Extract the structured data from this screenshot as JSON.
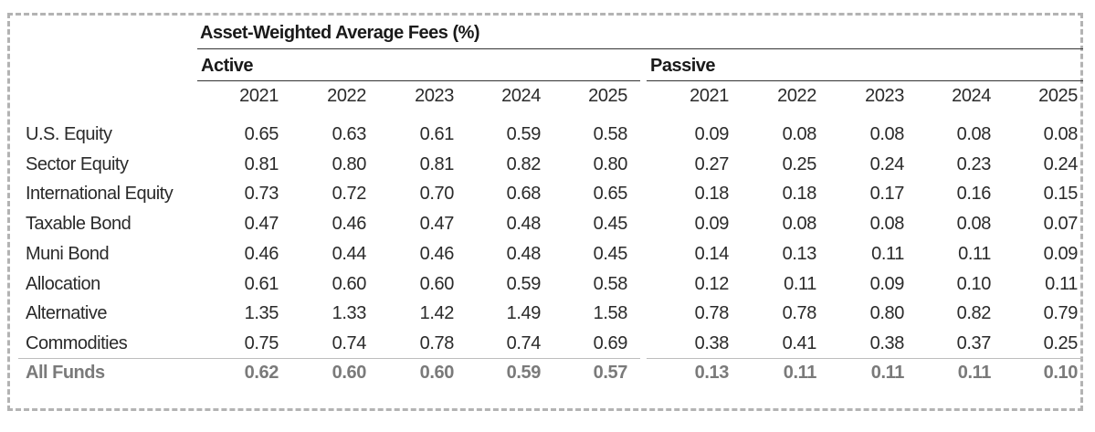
{
  "title": "Asset-Weighted Average Fees (%)",
  "groups": [
    {
      "label": "Active",
      "years": [
        "2021",
        "2022",
        "2023",
        "2024",
        "2025"
      ]
    },
    {
      "label": "Passive",
      "years": [
        "2021",
        "2022",
        "2023",
        "2024",
        "2025"
      ]
    }
  ],
  "chart_data": {
    "type": "table",
    "title": "Asset-Weighted Average Fees (%)",
    "column_groups": [
      "Active",
      "Passive"
    ],
    "columns": [
      "2021",
      "2022",
      "2023",
      "2024",
      "2025"
    ],
    "rows": [
      {
        "label": "U.S. Equity",
        "active": [
          "0.65",
          "0.63",
          "0.61",
          "0.59",
          "0.58"
        ],
        "passive": [
          "0.09",
          "0.08",
          "0.08",
          "0.08",
          "0.08"
        ]
      },
      {
        "label": "Sector Equity",
        "active": [
          "0.81",
          "0.80",
          "0.81",
          "0.82",
          "0.80"
        ],
        "passive": [
          "0.27",
          "0.25",
          "0.24",
          "0.23",
          "0.24"
        ]
      },
      {
        "label": "International Equity",
        "active": [
          "0.73",
          "0.72",
          "0.70",
          "0.68",
          "0.65"
        ],
        "passive": [
          "0.18",
          "0.18",
          "0.17",
          "0.16",
          "0.15"
        ]
      },
      {
        "label": "Taxable Bond",
        "active": [
          "0.47",
          "0.46",
          "0.47",
          "0.48",
          "0.45"
        ],
        "passive": [
          "0.09",
          "0.08",
          "0.08",
          "0.08",
          "0.07"
        ]
      },
      {
        "label": "Muni Bond",
        "active": [
          "0.46",
          "0.44",
          "0.46",
          "0.48",
          "0.45"
        ],
        "passive": [
          "0.14",
          "0.13",
          "0.11",
          "0.11",
          "0.09"
        ]
      },
      {
        "label": "Allocation",
        "active": [
          "0.61",
          "0.60",
          "0.60",
          "0.59",
          "0.58"
        ],
        "passive": [
          "0.12",
          "0.11",
          "0.09",
          "0.10",
          "0.11"
        ]
      },
      {
        "label": "Alternative",
        "active": [
          "1.35",
          "1.33",
          "1.42",
          "1.49",
          "1.58"
        ],
        "passive": [
          "0.78",
          "0.78",
          "0.80",
          "0.82",
          "0.79"
        ]
      },
      {
        "label": "Commodities",
        "active": [
          "0.75",
          "0.74",
          "0.78",
          "0.74",
          "0.69"
        ],
        "passive": [
          "0.38",
          "0.41",
          "0.38",
          "0.37",
          "0.25"
        ]
      }
    ],
    "total": {
      "label": "All Funds",
      "active": [
        "0.62",
        "0.60",
        "0.60",
        "0.59",
        "0.57"
      ],
      "passive": [
        "0.13",
        "0.11",
        "0.11",
        "0.11",
        "0.10"
      ]
    }
  }
}
